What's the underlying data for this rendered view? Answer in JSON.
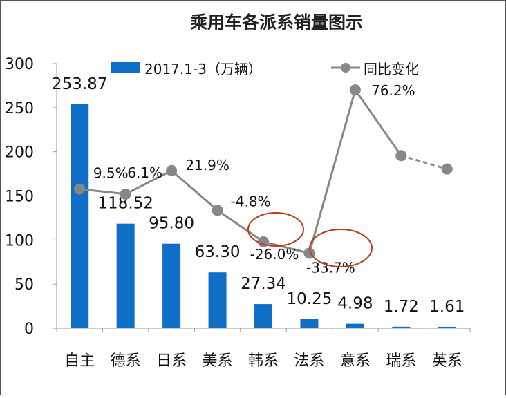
{
  "chart_data": {
    "type": "bar",
    "title": "乘用车各派系销量图示",
    "categories": [
      "自主",
      "德系",
      "日系",
      "美系",
      "韩系",
      "法系",
      "意系",
      "瑞系",
      "英系"
    ],
    "series": [
      {
        "name": "2017.1-3（万辆）",
        "type": "bar",
        "values": [
          253.87,
          118.52,
          95.8,
          63.3,
          27.34,
          10.25,
          4.98,
          1.72,
          1.61
        ],
        "labels": [
          "253.87",
          "118.52",
          "95.80",
          "63.30",
          "27.34",
          "10.25",
          "4.98",
          "1.72",
          "1.61"
        ],
        "color": "#0f6fc6"
      },
      {
        "name": "同比变化",
        "type": "line",
        "values": [
          9.5,
          6.1,
          21.9,
          -4.8,
          -26.0,
          -33.7,
          76.2,
          null,
          null
        ],
        "labels": [
          "9.5%",
          "6.1%",
          "21.9%",
          "-4.8%",
          "-26.0%",
          "-33.7%",
          "76.2%",
          "",
          ""
        ],
        "color": "#878787"
      }
    ],
    "ylim": [
      0,
      300
    ],
    "yticks": [
      "0",
      "50",
      "100",
      "150",
      "200",
      "250",
      "300"
    ],
    "grid": false,
    "legend": "top",
    "highlighted": [
      "-26.0%",
      "-33.7%"
    ],
    "highlight_color": "#c0391e"
  }
}
